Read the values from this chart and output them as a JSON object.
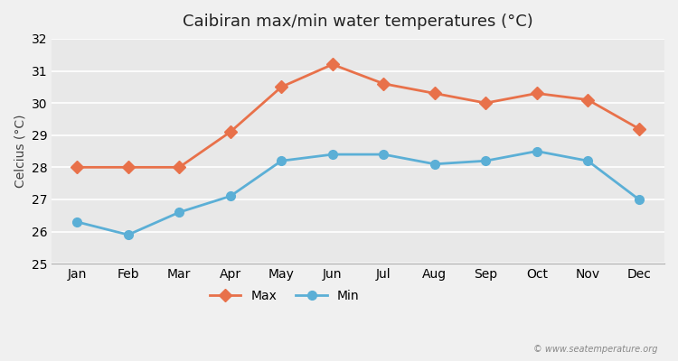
{
  "months": [
    "Jan",
    "Feb",
    "Mar",
    "Apr",
    "May",
    "Jun",
    "Jul",
    "Aug",
    "Sep",
    "Oct",
    "Nov",
    "Dec"
  ],
  "max_temps": [
    28.0,
    28.0,
    28.0,
    29.1,
    30.5,
    31.2,
    30.6,
    30.3,
    30.0,
    30.3,
    30.1,
    29.2
  ],
  "min_temps": [
    26.3,
    25.9,
    26.6,
    27.1,
    28.2,
    28.4,
    28.4,
    28.1,
    28.2,
    28.5,
    28.2,
    27.0
  ],
  "max_color": "#e8714a",
  "min_color": "#5bafd6",
  "title": "Caibiran max/min water temperatures (°C)",
  "ylabel": "Celcius (°C)",
  "ylim": [
    25,
    32
  ],
  "yticks": [
    25,
    26,
    27,
    28,
    29,
    30,
    31,
    32
  ],
  "bg_color": "#f0f0f0",
  "plot_bg_color": "#e8e8e8",
  "grid_color": "#ffffff",
  "legend_labels": [
    "Max",
    "Min"
  ],
  "watermark": "© www.seatemperature.org"
}
